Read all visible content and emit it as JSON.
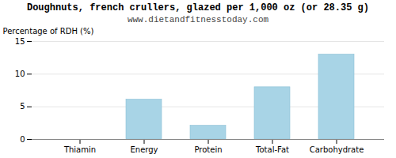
{
  "chart_data": {
    "type": "bar",
    "title": "Doughnuts, french crullers, glazed per 1,000 oz (or 28.35 g)",
    "subtitle": "www.dietandfitnesstoday.com",
    "categories": [
      "Thiamin",
      "Energy",
      "Protein",
      "Total-Fat",
      "Carbohydrate"
    ],
    "values": [
      0.0,
      6.1,
      2.1,
      8.0,
      13.0
    ],
    "color": "#a8d4e6",
    "ylabel": "Percentage of RDH (%)",
    "ylim": [
      0,
      15
    ],
    "yticks": [
      0,
      5,
      10,
      15
    ],
    "grid": true
  }
}
